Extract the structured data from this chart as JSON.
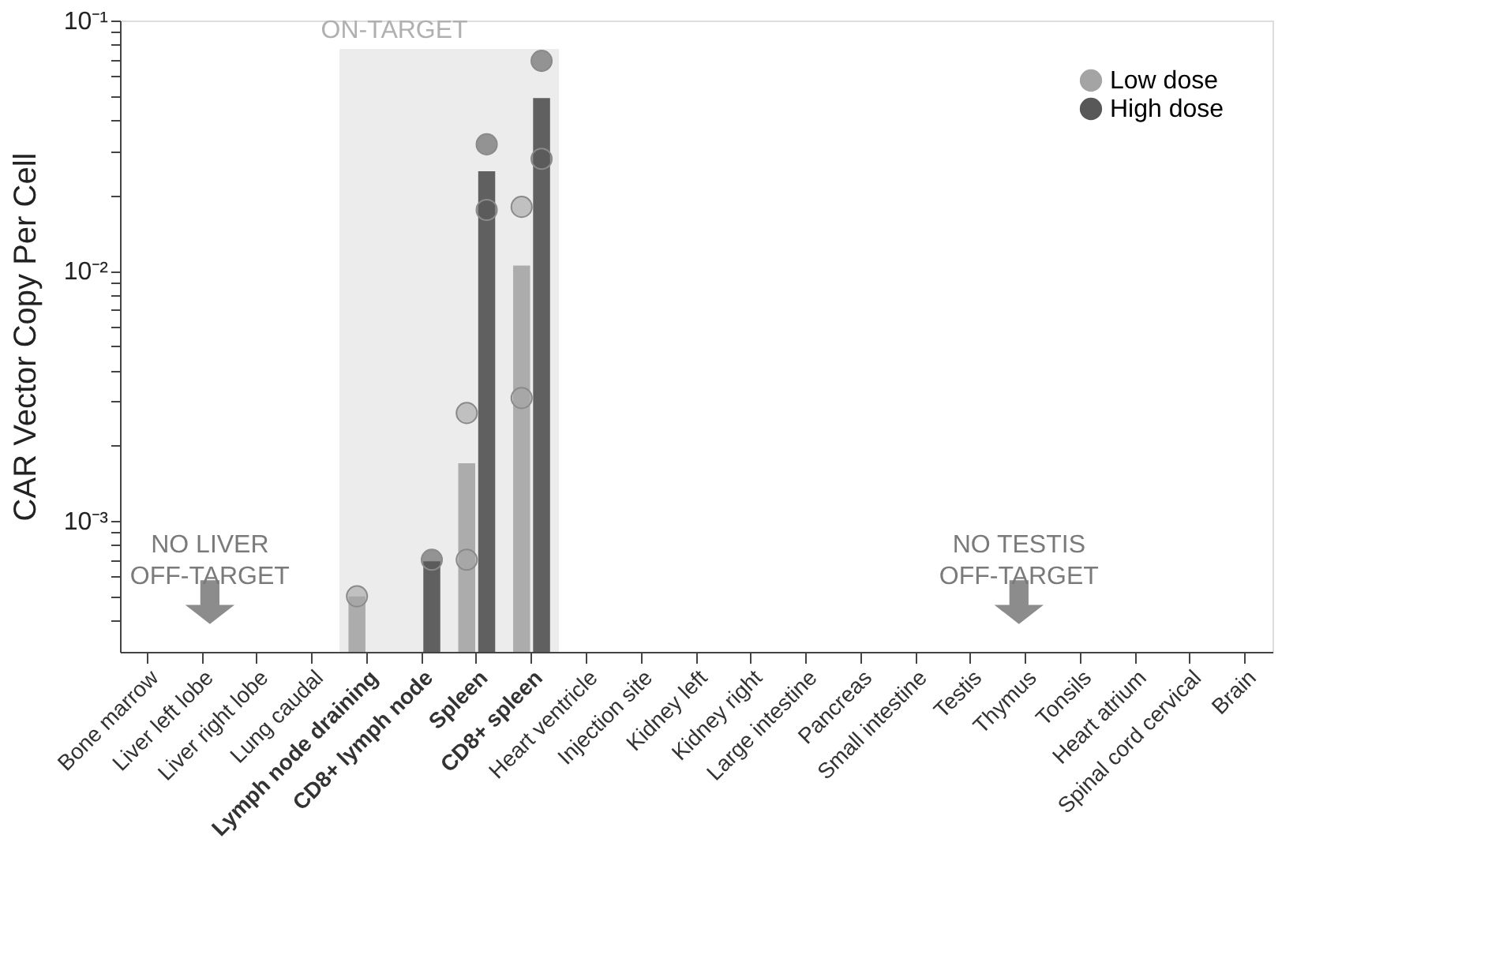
{
  "chart_data": {
    "type": "bar",
    "ylabel": "CAR Vector Copy Per Cell",
    "categories": [
      "Bone marrow",
      "Liver left lobe",
      "Liver right lobe",
      "Lung caudal",
      "Lymph node draining",
      "CD8+ lymph node",
      "Spleen",
      "CD8+ spleen",
      "Heart ventricle",
      "Injection site",
      "Kidney left",
      "Kidney right",
      "Large intestine",
      "Pancreas",
      "Small intestine",
      "Testis",
      "Thymus",
      "Tonsils",
      "Heart atrium",
      "Spinal cord cervical",
      "Brain"
    ],
    "series": [
      {
        "color": "#acacac",
        "values": [
          null,
          null,
          null,
          null,
          0.0005,
          null,
          0.0017,
          0.0105,
          null,
          null,
          null,
          null,
          null,
          null,
          null,
          null,
          null,
          null,
          null,
          null,
          null
        ]
      },
      {
        "color": "#606060",
        "values": [
          null,
          null,
          null,
          null,
          null,
          0.00069,
          0.025,
          0.049,
          null,
          null,
          null,
          null,
          null,
          null,
          null,
          null,
          null,
          null,
          null,
          null,
          null
        ]
      },
      {
        "type": "scatter",
        "name": "Low dose",
        "color": "#a4a4a4",
        "x": [
          "Lymph node draining",
          "Spleen",
          "Spleen",
          "CD8+ spleen",
          "CD8+ spleen"
        ],
        "values": [
          0.0005,
          0.0027,
          0.0007,
          0.018,
          0.0031
        ]
      },
      {
        "type": "scatter",
        "name": "High dose",
        "color": "#585858",
        "x": [
          "CD8+ lymph node",
          "Spleen",
          "Spleen",
          "CD8+ spleen",
          "CD8+ spleen"
        ],
        "values": [
          0.0007,
          0.032,
          0.0175,
          0.069,
          0.028
        ]
      }
    ],
    "log": true,
    "ylim": [
      0.0003,
      0.1
    ],
    "yticks": [
      {
        "value": 0.0004,
        "label": null
      },
      {
        "value": 0.0005,
        "label": null
      },
      {
        "value": 0.0006,
        "label": null
      },
      {
        "value": 0.0007,
        "label": null
      },
      {
        "value": 0.0008,
        "label": null
      },
      {
        "value": 0.0009,
        "label": null
      },
      {
        "value": 0.001,
        "label": "10⁻³"
      },
      {
        "value": 0.002,
        "label": null
      },
      {
        "value": 0.003,
        "label": null
      },
      {
        "value": 0.004,
        "label": null
      },
      {
        "value": 0.005,
        "label": null
      },
      {
        "value": 0.006,
        "label": null
      },
      {
        "value": 0.007,
        "label": null
      },
      {
        "value": 0.008,
        "label": null
      },
      {
        "value": 0.009,
        "label": null
      },
      {
        "value": 0.01,
        "label": "10⁻²"
      },
      {
        "value": 0.02,
        "label": null
      },
      {
        "value": 0.03,
        "label": null
      },
      {
        "value": 0.04,
        "label": null
      },
      {
        "value": 0.05,
        "label": null
      },
      {
        "value": 0.06,
        "label": null
      },
      {
        "value": 0.07,
        "label": null
      },
      {
        "value": 0.08,
        "label": null
      },
      {
        "value": 0.09,
        "label": null
      },
      {
        "value": 0.1,
        "label": "10⁻¹"
      }
    ],
    "bands": [
      {
        "axis": "x",
        "from": "Lymph node draining",
        "to": "CD8+ spleen",
        "label": "ON-TARGET",
        "color": "#ececec"
      }
    ],
    "annotations": [
      "NO LIVER\nOFF-TARGET",
      "NO TESTIS\nOFF-TARGET"
    ],
    "legend": "top right",
    "grid": false,
    "marker": "circle"
  }
}
